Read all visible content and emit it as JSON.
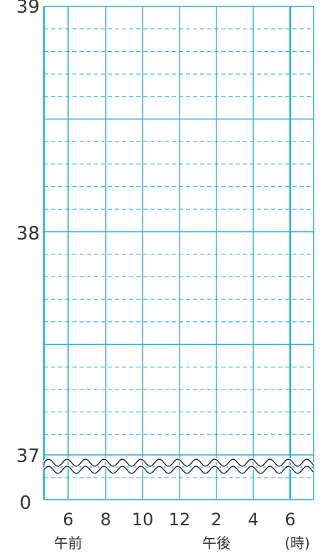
{
  "chart_data": {
    "type": "line",
    "x_ticks": [
      "6",
      "8",
      "10",
      "12",
      "2",
      "4",
      "6"
    ],
    "y_ticks": [
      "0",
      "37",
      "38",
      "39"
    ],
    "x_sub_labels": [
      "午前",
      "午後",
      "(時)"
    ],
    "series": [],
    "y_range": [
      37,
      39
    ],
    "axis_break": true,
    "grid": true,
    "colors": {
      "grid": "#29abe2",
      "axis_text": "#333333",
      "break_line": "#222222"
    }
  }
}
